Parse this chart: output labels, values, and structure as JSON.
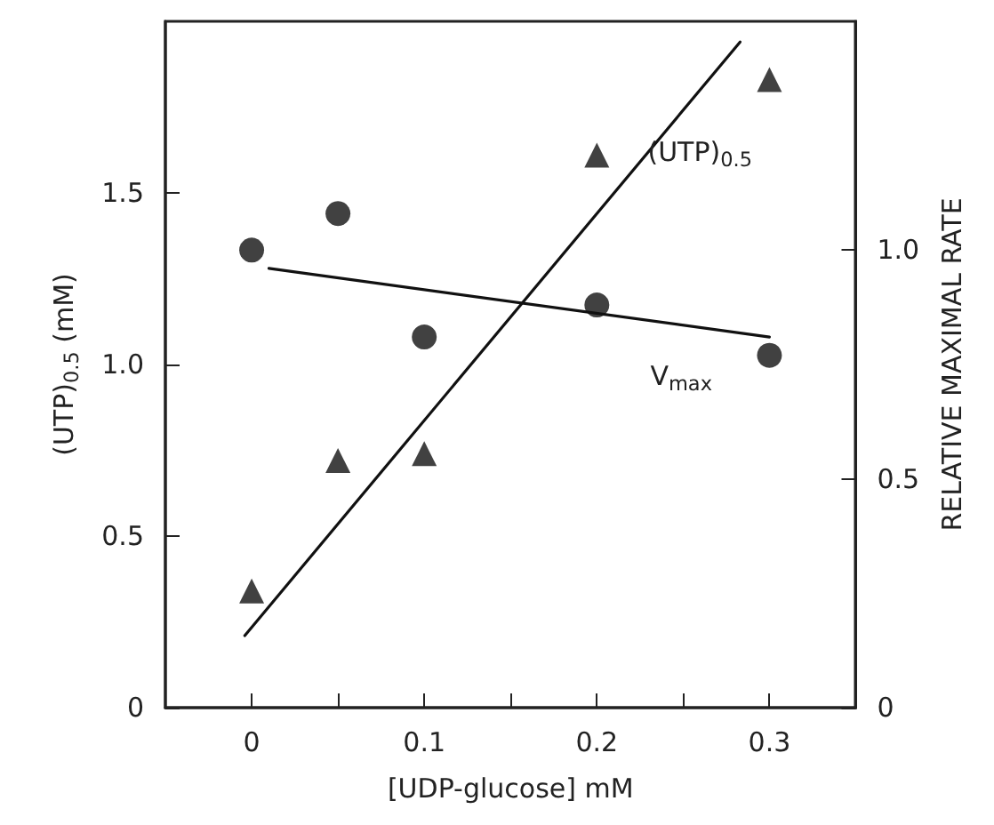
{
  "chart_data": {
    "type": "scatter",
    "xlabel": "[UDP-glucose] mM",
    "ylabel": "(UTP)$_{0.5}$ (mM)",
    "y2label": "RELATIVE MAXIMAL RATE",
    "xlim": [
      -0.05,
      0.35
    ],
    "xticks": [
      0,
      {
        "value": 0.05,
        "label": null
      },
      {
        "value": 0.1,
        "label": "0.1"
      },
      {
        "value": 0.15,
        "label": null
      },
      {
        "value": 0.2,
        "label": "0.2"
      },
      {
        "value": 0.25,
        "label": null
      },
      {
        "value": 0.3,
        "label": "0.3"
      }
    ],
    "ylim": [
      0,
      2
    ],
    "yticks": [
      0,
      0.5,
      {
        "value": 1,
        "label": "1.0"
      },
      1.5
    ],
    "y2lim": [
      0,
      1.5
    ],
    "y2ticks": [
      0,
      0.5,
      {
        "value": 1,
        "label": "1.0"
      }
    ],
    "grid": false,
    "series": [
      {
        "color": "#111111",
        "marker": "triangle",
        "x": [
          0,
          0.05,
          0.1,
          0.2,
          0.3
        ],
        "values": [
          0.34,
          0.72,
          0.74,
          1.61,
          1.83
        ]
      },
      {
        "type": "line",
        "name": "(UTP)$_{0.5}$",
        "color": "#111111",
        "marker": "none",
        "x": [
          -0.004,
          0.283
        ],
        "values": [
          0.21,
          1.94
        ]
      },
      {
        "color": "#111111",
        "marker": "circle",
        "axis": "y2",
        "x": [
          0,
          0.05,
          0.1,
          0.2,
          0.3
        ],
        "values": [
          1.0,
          1.08,
          0.81,
          0.88,
          0.77
        ]
      },
      {
        "type": "line",
        "name": "V$_{max}$",
        "color": "#111111",
        "marker": "none",
        "axis": "y2",
        "x": [
          0.01,
          0.3
        ],
        "values": [
          0.96,
          0.81
        ]
      }
    ]
  }
}
